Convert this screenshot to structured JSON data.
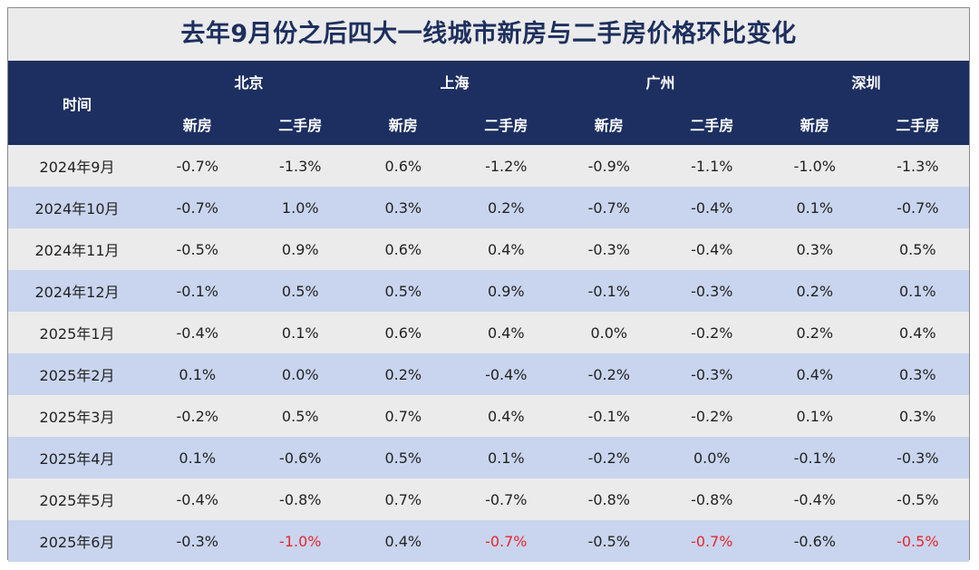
{
  "title": "去年9月份之后四大一线城市新房与二手房价格环比变化",
  "header": {
    "time_label": "时间",
    "cities": [
      "北京",
      "上海",
      "广州",
      "深圳"
    ],
    "types": [
      "新房",
      "二手房"
    ]
  },
  "colors": {
    "header_bg": "#1d2f61",
    "row_light": "#ebebeb",
    "row_blue": "#c9d5ee",
    "title_color": "#1d2f5e",
    "highlight_red": "#e8262b"
  },
  "chart_data": {
    "type": "table",
    "title": "去年9月份之后四大一线城市新房与二手房价格环比变化",
    "columns": [
      "时间",
      "北京 新房",
      "北京 二手房",
      "上海 新房",
      "上海 二手房",
      "广州 新房",
      "广州 二手房",
      "深圳 新房",
      "深圳 二手房"
    ],
    "rows": [
      {
        "time": "2024年9月",
        "values": [
          "-0.7%",
          "-1.3%",
          "0.6%",
          "-1.2%",
          "-0.9%",
          "-1.1%",
          "-1.0%",
          "-1.3%"
        ]
      },
      {
        "time": "2024年10月",
        "values": [
          "-0.7%",
          "1.0%",
          "0.3%",
          "0.2%",
          "-0.7%",
          "-0.4%",
          "0.1%",
          "-0.7%"
        ]
      },
      {
        "time": "2024年11月",
        "values": [
          "-0.5%",
          "0.9%",
          "0.6%",
          "0.4%",
          "-0.3%",
          "-0.4%",
          "0.3%",
          "0.5%"
        ]
      },
      {
        "time": "2024年12月",
        "values": [
          "-0.1%",
          "0.5%",
          "0.5%",
          "0.9%",
          "-0.1%",
          "-0.3%",
          "0.2%",
          "0.1%"
        ]
      },
      {
        "time": "2025年1月",
        "values": [
          "-0.4%",
          "0.1%",
          "0.6%",
          "0.4%",
          "0.0%",
          "-0.2%",
          "0.2%",
          "0.4%"
        ]
      },
      {
        "time": "2025年2月",
        "values": [
          "0.1%",
          "0.0%",
          "0.2%",
          "-0.4%",
          "-0.2%",
          "-0.3%",
          "0.4%",
          "0.3%"
        ]
      },
      {
        "time": "2025年3月",
        "values": [
          "-0.2%",
          "0.5%",
          "0.7%",
          "0.4%",
          "-0.1%",
          "-0.2%",
          "0.1%",
          "0.3%"
        ]
      },
      {
        "time": "2025年4月",
        "values": [
          "0.1%",
          "-0.6%",
          "0.5%",
          "0.1%",
          "-0.2%",
          "0.0%",
          "-0.1%",
          "-0.3%"
        ]
      },
      {
        "time": "2025年5月",
        "values": [
          "-0.4%",
          "-0.8%",
          "0.7%",
          "-0.7%",
          "-0.8%",
          "-0.8%",
          "-0.4%",
          "-0.5%"
        ]
      },
      {
        "time": "2025年6月",
        "values": [
          "-0.3%",
          "-1.0%",
          "0.4%",
          "-0.7%",
          "-0.5%",
          "-0.7%",
          "-0.6%",
          "-0.5%"
        ],
        "highlight_red_cols": [
          1,
          3,
          5,
          7
        ]
      }
    ]
  }
}
